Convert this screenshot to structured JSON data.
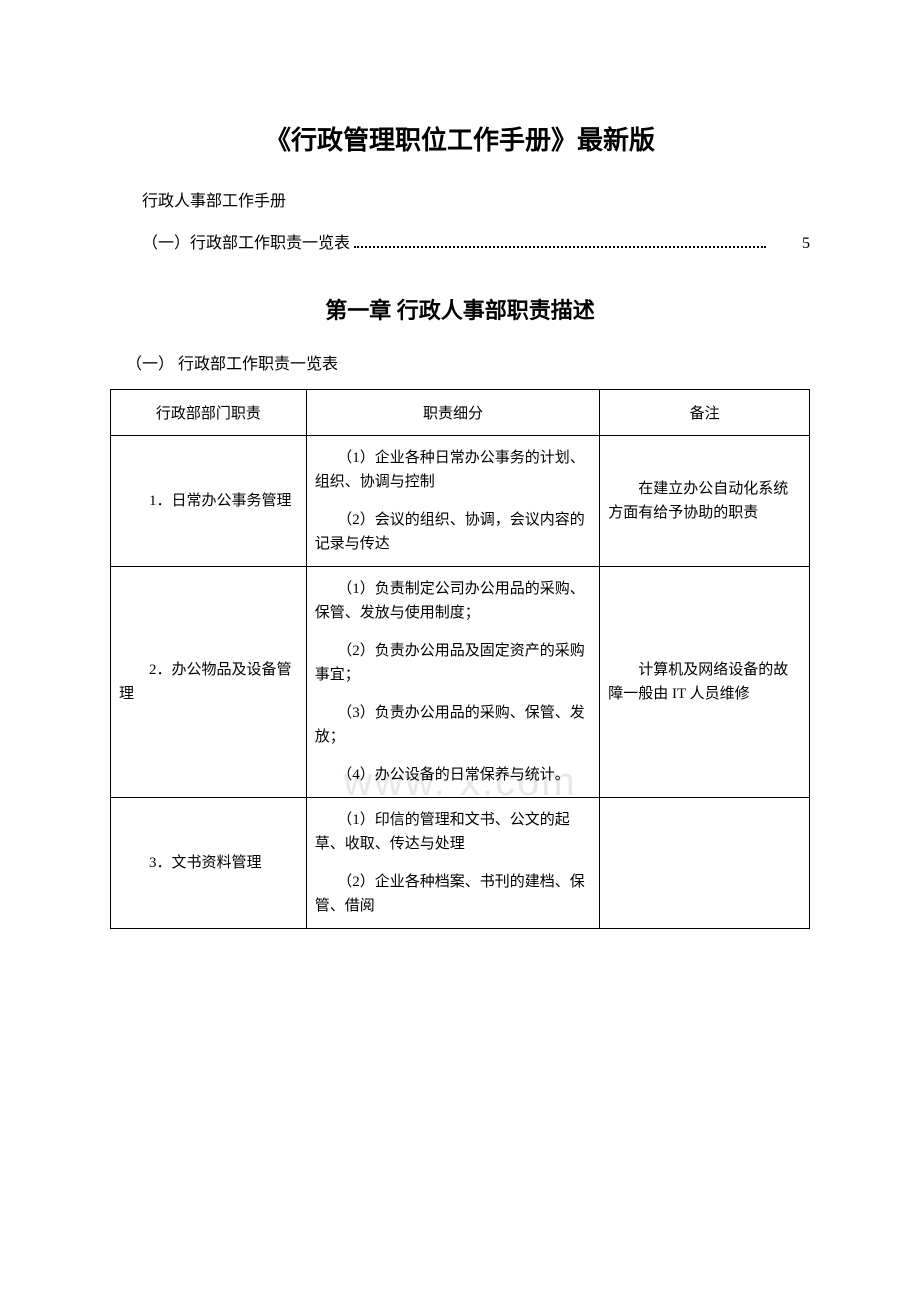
{
  "mainTitle": "《行政管理职位工作手册》最新版",
  "subtitle": "行政人事部工作手册",
  "toc": {
    "text": "（一）行政部工作职责一览表",
    "page": "5"
  },
  "chapterTitle": "第一章 行政人事部职责描述",
  "sectionLabel": "（一） 行政部工作职责一览表",
  "watermark": "www.         x.com",
  "table": {
    "headers": [
      "行政部部门职责",
      "职责细分",
      "备注"
    ],
    "rows": [
      {
        "duty": "　　1．日常办公事务管理",
        "details": [
          "　　（1）企业各种日常办公事务的计划、组织、协调与控制",
          "　　（2）会议的组织、协调，会议内容的记录与传达"
        ],
        "note": "　　在建立办公自动化系统方面有给予协助的职责"
      },
      {
        "duty": "　　2．办公物品及设备管理",
        "details": [
          "　　（1）负责制定公司办公用品的采购、保管、发放与使用制度；",
          "　　（2）负责办公用品及固定资产的采购事宜；",
          "　　（3）负责办公用品的采购、保管、发放；",
          "　　（4）办公设备的日常保养与统计。"
        ],
        "note": "　　计算机及网络设备的故障一般由 IT 人员维修"
      },
      {
        "duty": "　　3．文书资料管理",
        "details": [
          "　　（1）印信的管理和文书、公文的起草、收取、传达与处理",
          "　　（2）企业各种档案、书刊的建档、保管、借阅"
        ],
        "note": ""
      }
    ]
  }
}
